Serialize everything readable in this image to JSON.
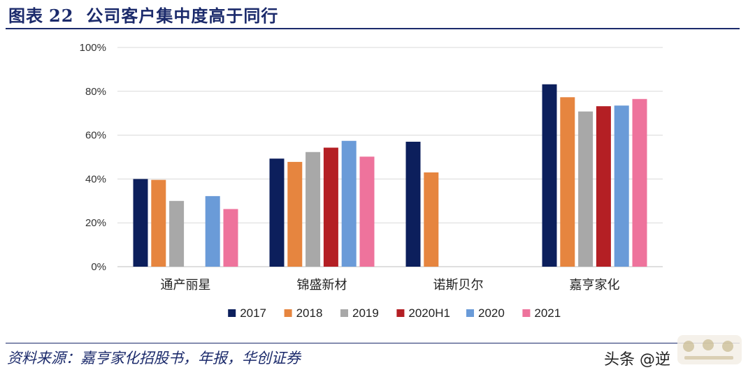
{
  "header": {
    "fig_label": "图表",
    "fig_number": "22",
    "title": "公司客户集中度高于同行"
  },
  "footer": {
    "source": "资料来源：嘉亨家化招股书，年报，华创证券",
    "watermark": "头条 @逆"
  },
  "chart_data": {
    "type": "bar",
    "categories": [
      "通产丽星",
      "锦盛新材",
      "诺斯贝尔",
      "嘉亨家化"
    ],
    "series": [
      {
        "name": "2017",
        "color": "#0c1f5c",
        "values": [
          40.0,
          49.3,
          57.0,
          83.2
        ]
      },
      {
        "name": "2018",
        "color": "#e6853f",
        "values": [
          39.6,
          47.8,
          43.0,
          77.3
        ]
      },
      {
        "name": "2019",
        "color": "#a8a8a8",
        "values": [
          30.0,
          52.3,
          null,
          70.8
        ]
      },
      {
        "name": "2020H1",
        "color": "#b41f24",
        "values": [
          null,
          54.3,
          null,
          73.2
        ]
      },
      {
        "name": "2020",
        "color": "#6a9bd8",
        "values": [
          32.2,
          57.4,
          null,
          73.5
        ]
      },
      {
        "name": "2021",
        "color": "#ee739c",
        "values": [
          26.3,
          50.2,
          null,
          76.5
        ]
      }
    ],
    "yticks": [
      "0%",
      "20%",
      "40%",
      "60%",
      "80%",
      "100%"
    ],
    "ylim": [
      0,
      100
    ],
    "grid": true,
    "legend": "bottom"
  }
}
